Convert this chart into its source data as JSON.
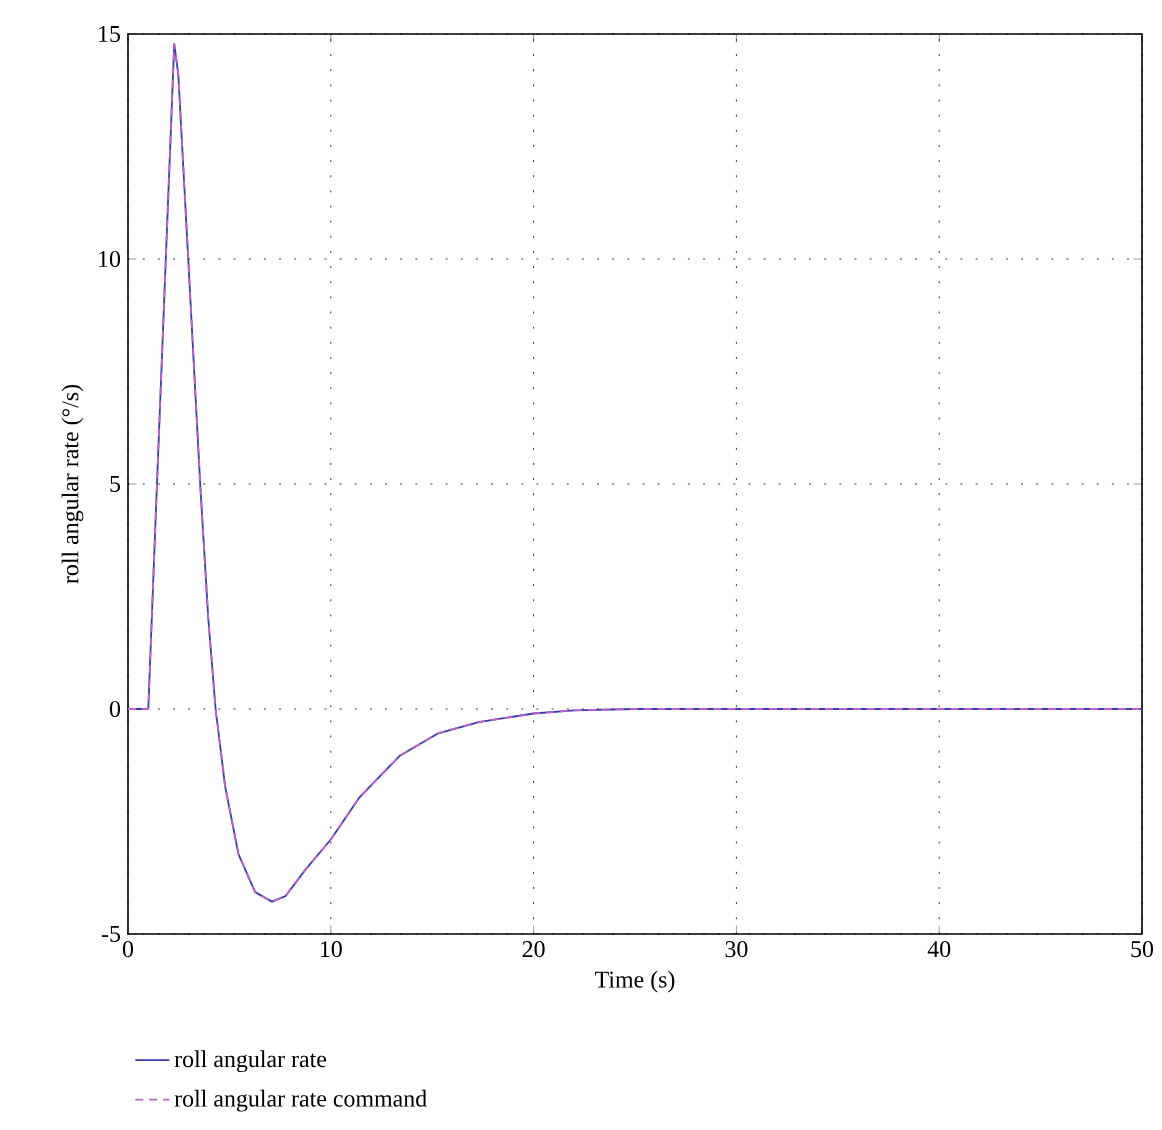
{
  "chart_data": {
    "type": "line",
    "xlabel": "Time (s)",
    "ylabel": "roll angular rate (°/s)",
    "xlim": [
      0,
      50
    ],
    "ylim": [
      -5,
      15
    ],
    "xticks": [
      0,
      10,
      20,
      30,
      40,
      50
    ],
    "yticks": [
      -5,
      0,
      5,
      10,
      15
    ],
    "grid": true,
    "legend": "bottom",
    "marker": "none",
    "x": [
      0,
      1,
      1.42,
      2.28,
      2.48,
      2.97,
      3.56,
      3.96,
      4.32,
      4.79,
      5.45,
      6.27,
      7.1,
      7.76,
      8.75,
      10,
      11.4,
      13.4,
      15.3,
      17.3,
      20,
      22,
      25,
      30,
      40,
      50
    ],
    "series": [
      {
        "name": "roll angular rate",
        "color": "#3a3ab4",
        "line_style": "solid",
        "values": [
          0,
          0,
          4.9,
          14.78,
          14.1,
          10,
          5,
          2,
          0,
          -1.72,
          -3.23,
          -4.07,
          -4.28,
          -4.16,
          -3.57,
          -2.9,
          -1.97,
          -1.04,
          -0.54,
          -0.29,
          -0.1,
          -0.03,
          0,
          0,
          0,
          0
        ]
      },
      {
        "name": "roll angular rate command",
        "color": "#c462c4",
        "line_style": "dashed",
        "values": [
          0,
          0,
          4.9,
          14.78,
          14.1,
          10,
          5,
          2,
          0,
          -1.72,
          -3.23,
          -4.07,
          -4.28,
          -4.16,
          -3.57,
          -2.9,
          -1.97,
          -1.04,
          -0.54,
          -0.29,
          -0.1,
          -0.03,
          0,
          0,
          0,
          0
        ]
      }
    ]
  }
}
